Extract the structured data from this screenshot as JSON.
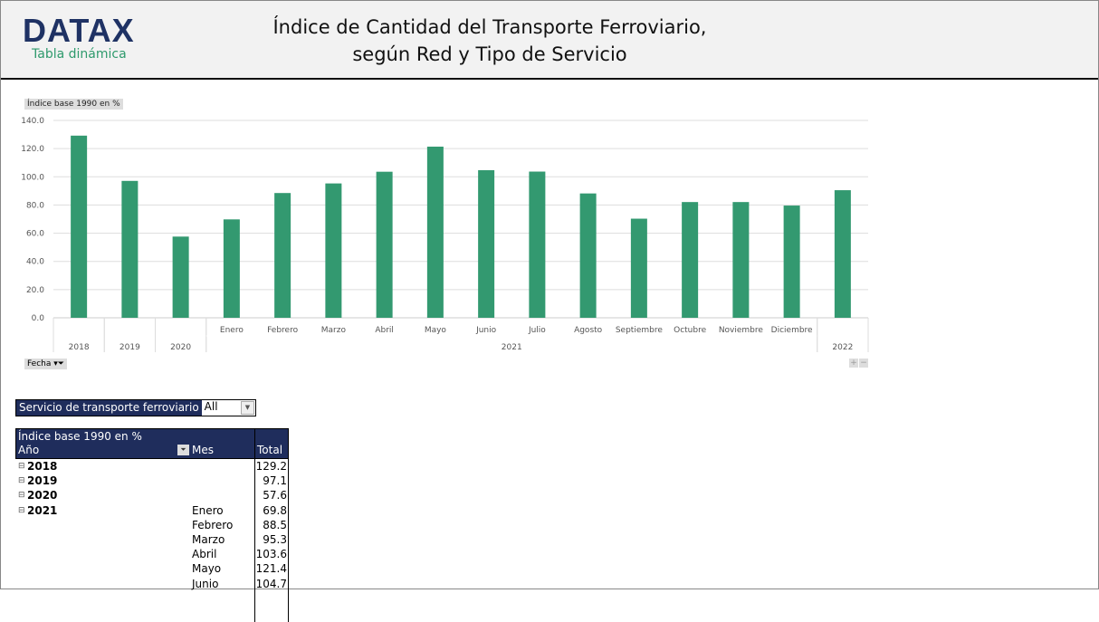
{
  "header": {
    "logo": "DATAX",
    "logo_sub": "Tabla dinámica",
    "title_line1": "Índice de Cantidad del Transporte Ferroviario,",
    "title_line2": "según Red y Tipo de Servicio"
  },
  "chart_data": {
    "type": "bar",
    "ylabel": "Índice base 1990 en %",
    "ylim": [
      0,
      140
    ],
    "yticks": [
      "0.0",
      "20.0",
      "40.0",
      "60.0",
      "80.0",
      "100.0",
      "120.0",
      "140.0"
    ],
    "grid": true,
    "color": "#339970",
    "categories": [
      {
        "year": "2018",
        "month": ""
      },
      {
        "year": "2019",
        "month": ""
      },
      {
        "year": "2020",
        "month": ""
      },
      {
        "year": "2021",
        "month": "Enero"
      },
      {
        "year": "2021",
        "month": "Febrero"
      },
      {
        "year": "2021",
        "month": "Marzo"
      },
      {
        "year": "2021",
        "month": "Abril"
      },
      {
        "year": "2021",
        "month": "Mayo"
      },
      {
        "year": "2021",
        "month": "Junio"
      },
      {
        "year": "2021",
        "month": "Julio"
      },
      {
        "year": "2021",
        "month": "Agosto"
      },
      {
        "year": "2021",
        "month": "Septiembre"
      },
      {
        "year": "2021",
        "month": "Octubre"
      },
      {
        "year": "2021",
        "month": "Noviembre"
      },
      {
        "year": "2021",
        "month": "Diciembre"
      },
      {
        "year": "2022",
        "month": ""
      }
    ],
    "values": [
      129.2,
      97.1,
      57.6,
      69.8,
      88.5,
      95.3,
      103.6,
      121.4,
      104.7,
      103.7,
      88.2,
      70.3,
      82.1,
      82.1,
      79.6,
      90.5
    ]
  },
  "chart_controls": {
    "field_button": "Fecha",
    "zoom_in": "+",
    "zoom_out": "−"
  },
  "filter": {
    "label": "Servicio de transporte ferroviario",
    "value": "All"
  },
  "pivot": {
    "measure": "Índice base 1990 en %",
    "col_year": "Año",
    "col_month": "Mes",
    "col_total": "Total",
    "rows": [
      {
        "year": "2018",
        "month": "",
        "total": "129.2"
      },
      {
        "year": "2019",
        "month": "",
        "total": "97.1"
      },
      {
        "year": "2020",
        "month": "",
        "total": "57.6"
      },
      {
        "year": "2021",
        "month": "Enero",
        "total": "69.8"
      },
      {
        "year": "",
        "month": "Febrero",
        "total": "88.5"
      },
      {
        "year": "",
        "month": "Marzo",
        "total": "95.3"
      },
      {
        "year": "",
        "month": "Abril",
        "total": "103.6"
      },
      {
        "year": "",
        "month": "Mayo",
        "total": "121.4"
      },
      {
        "year": "",
        "month": "Junio",
        "total": "104.7"
      }
    ]
  }
}
